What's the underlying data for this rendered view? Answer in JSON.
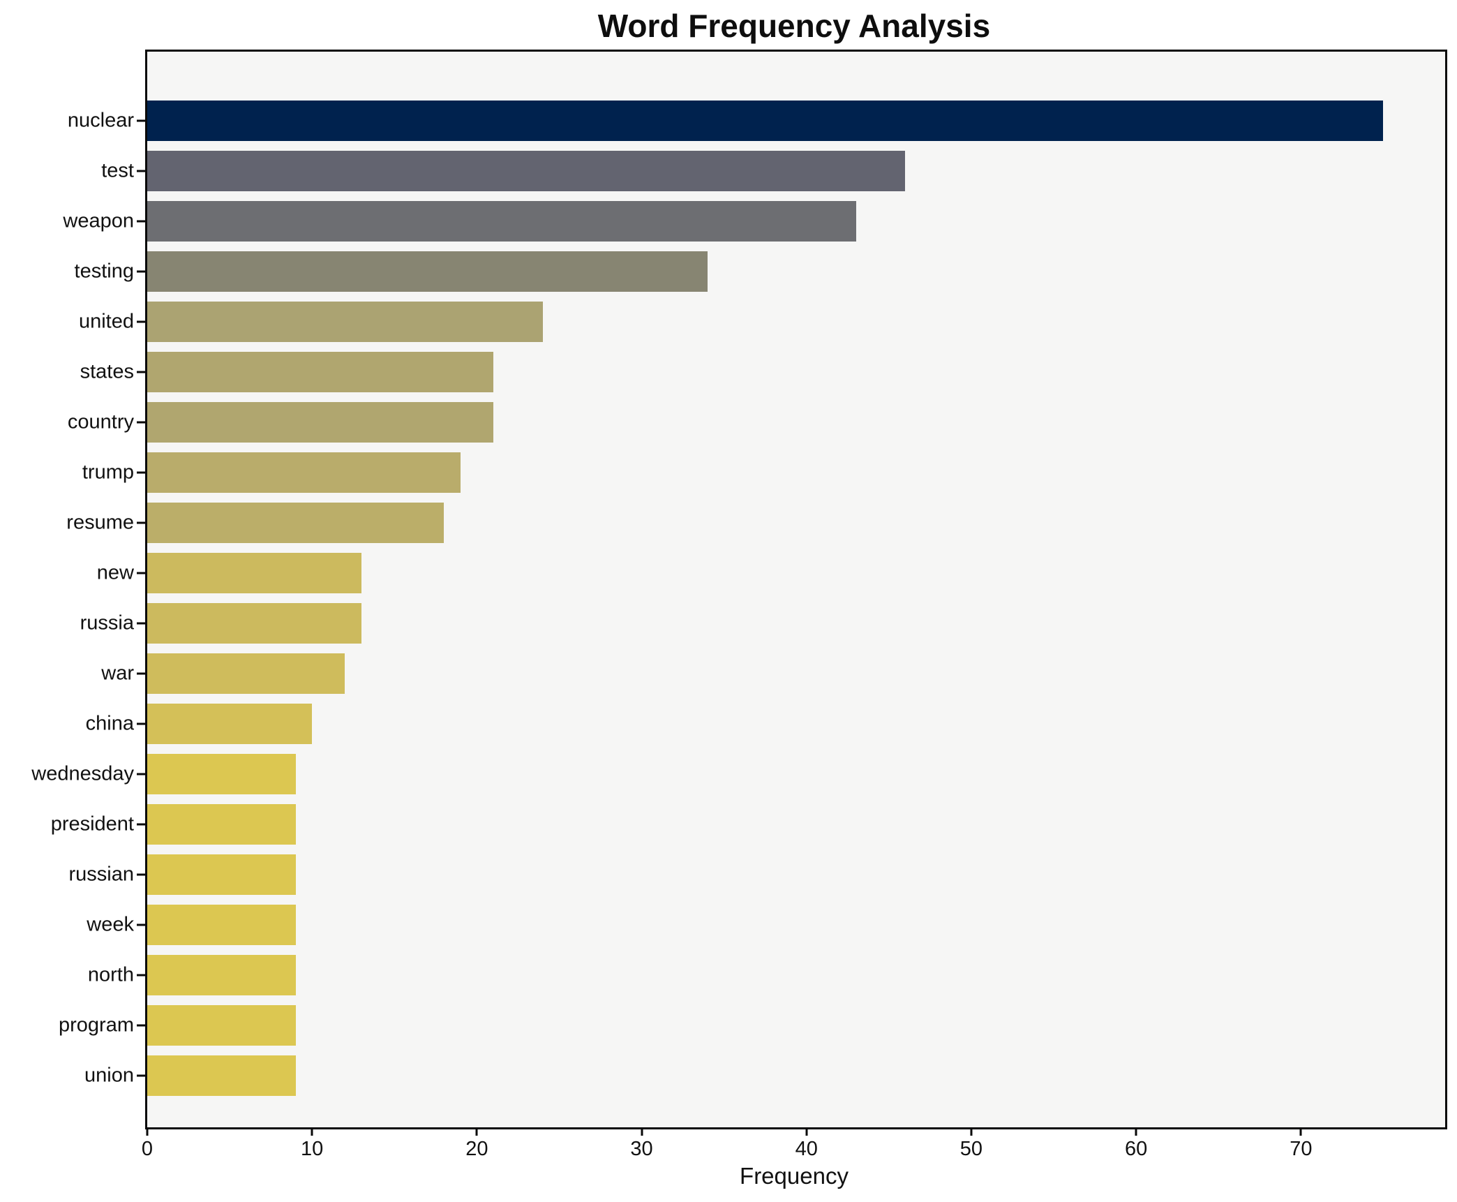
{
  "chart_data": {
    "type": "bar",
    "orientation": "horizontal",
    "title": "Word Frequency Analysis",
    "xlabel": "Frequency",
    "ylabel": "",
    "categories": [
      "nuclear",
      "test",
      "weapon",
      "testing",
      "united",
      "states",
      "country",
      "trump",
      "resume",
      "new",
      "russia",
      "war",
      "china",
      "wednesday",
      "president",
      "russian",
      "week",
      "north",
      "program",
      "union"
    ],
    "values": [
      75,
      46,
      43,
      34,
      24,
      21,
      21,
      19,
      18,
      13,
      13,
      12,
      10,
      9,
      9,
      9,
      9,
      9,
      9,
      9
    ],
    "bar_colors": [
      "#00224e",
      "#636470",
      "#6d6e72",
      "#878572",
      "#aba372",
      "#b0a66f",
      "#b0a66f",
      "#b9ac6b",
      "#bbae69",
      "#ccba5e",
      "#ccba5e",
      "#cfbc5c",
      "#d4c058",
      "#dcc751",
      "#dcc751",
      "#dcc751",
      "#dcc751",
      "#dcc751",
      "#dcc751",
      "#dcc751"
    ],
    "xlim": [
      0,
      78.75
    ],
    "xticks": [
      0,
      10,
      20,
      30,
      40,
      50,
      60,
      70
    ],
    "grid": false,
    "legend": "none",
    "plot_bg": "#f6f6f5",
    "figure_bg": "#ffffff",
    "spine_color": "#0a0a0a"
  }
}
